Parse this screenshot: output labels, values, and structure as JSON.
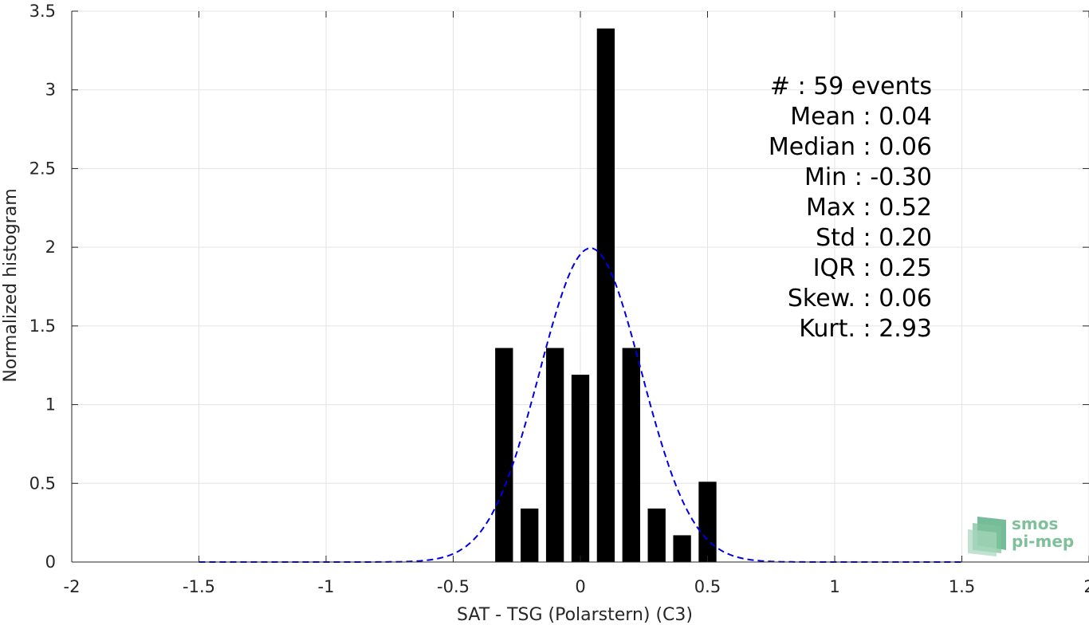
{
  "chart_data": {
    "type": "bar",
    "xlabel": "SAT - TSG (Polarstern) (C3)",
    "ylabel": "Normalized histogram",
    "xlim": [
      -2,
      2
    ],
    "ylim": [
      0,
      3.5
    ],
    "xticks": [
      -2,
      -1.5,
      -1,
      -0.5,
      0,
      0.5,
      1,
      1.5,
      2
    ],
    "xtick_labels": [
      "-2",
      "-1.5",
      "-1",
      "-0.5",
      "0",
      "0.5",
      "1",
      "1.5",
      "2"
    ],
    "yticks": [
      0,
      0.5,
      1,
      1.5,
      2,
      2.5,
      3,
      3.5
    ],
    "ytick_labels": [
      "0",
      "0.5",
      "1",
      "1.5",
      "2",
      "2.5",
      "3",
      "3.5"
    ],
    "grid": true,
    "bar_color": "#000000",
    "bars": {
      "x": [
        -0.3,
        -0.2,
        -0.1,
        0.0,
        0.1,
        0.2,
        0.3,
        0.4,
        0.5
      ],
      "values": [
        1.36,
        0.34,
        1.36,
        1.19,
        3.39,
        1.36,
        0.34,
        0.17,
        0.51
      ],
      "width": 0.07
    },
    "fit_curve": {
      "style": "dashed",
      "color": "#0000e6",
      "mean": 0.04,
      "std": 0.2,
      "x_range": [
        -1.5,
        1.5
      ]
    },
    "stats": [
      "#  : 59 events",
      "Mean : 0.04",
      "Median : 0.06",
      "Min : -0.30",
      "Max : 0.52",
      "Std : 0.20",
      "IQR : 0.25",
      "Skew. : 0.06",
      "Kurt. : 2.93"
    ]
  },
  "logo": {
    "line1": "smos",
    "line2": "pi-mep",
    "color": "#7fbf9a"
  }
}
